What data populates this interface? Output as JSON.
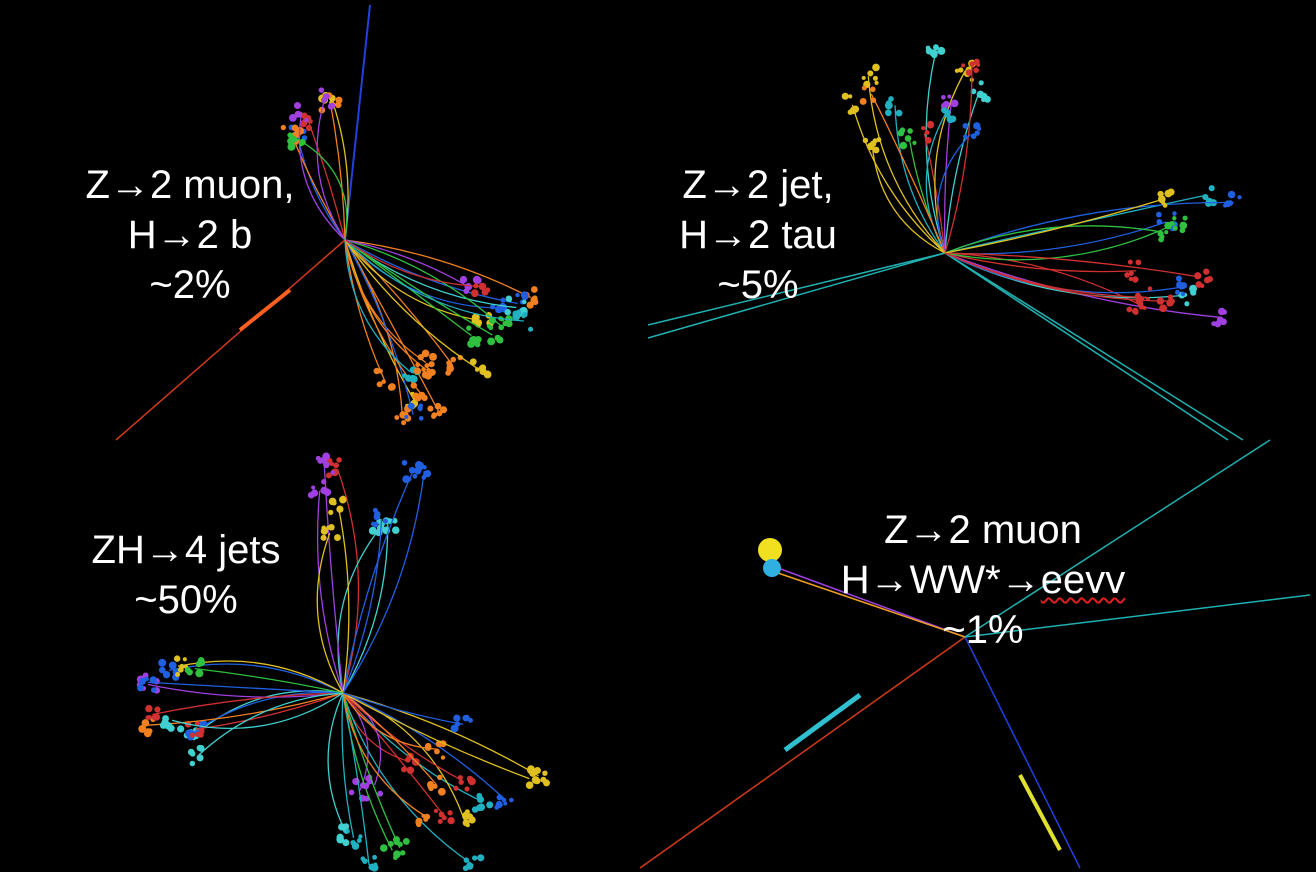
{
  "events": [
    {
      "lines": [
        "Z→2 muon,",
        "H→2 b",
        "~2%"
      ]
    },
    {
      "lines": [
        "Z→2 jet,",
        "H→2 tau",
        "~5%"
      ]
    },
    {
      "lines": [
        "ZH→4 jets",
        "~50%"
      ]
    },
    {
      "lines": [
        "Z→2 muon",
        "H→WW*→",
        "eevv",
        "~1%"
      ]
    }
  ]
}
